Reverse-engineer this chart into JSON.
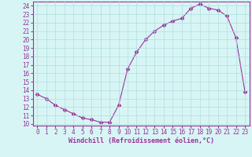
{
  "x": [
    0,
    1,
    2,
    3,
    4,
    5,
    6,
    7,
    8,
    9,
    10,
    11,
    12,
    13,
    14,
    15,
    16,
    17,
    18,
    19,
    20,
    21,
    22,
    23
  ],
  "y": [
    13.5,
    13.0,
    12.2,
    11.7,
    11.2,
    10.7,
    10.5,
    10.2,
    10.2,
    12.2,
    16.5,
    18.5,
    20.0,
    21.0,
    21.7,
    22.2,
    22.5,
    23.7,
    24.2,
    23.7,
    23.5,
    22.8,
    20.2,
    13.8
  ],
  "line_color": "#993399",
  "marker": "D",
  "marker_size": 2.5,
  "bg_color": "#d8f5f5",
  "grid_color": "#b0dede",
  "xlabel": "Windchill (Refroidissement éolien,°C)",
  "ylim": [
    9.8,
    24.5
  ],
  "xlim": [
    -0.5,
    23.5
  ],
  "yticks": [
    10,
    11,
    12,
    13,
    14,
    15,
    16,
    17,
    18,
    19,
    20,
    21,
    22,
    23,
    24
  ],
  "xticks": [
    0,
    1,
    2,
    3,
    4,
    5,
    6,
    7,
    8,
    9,
    10,
    11,
    12,
    13,
    14,
    15,
    16,
    17,
    18,
    19,
    20,
    21,
    22,
    23
  ],
  "xlabel_color": "#993399",
  "tick_color": "#993399",
  "axis_color": "#993399",
  "tick_font_size": 5.5,
  "xlabel_font_size": 6.0
}
